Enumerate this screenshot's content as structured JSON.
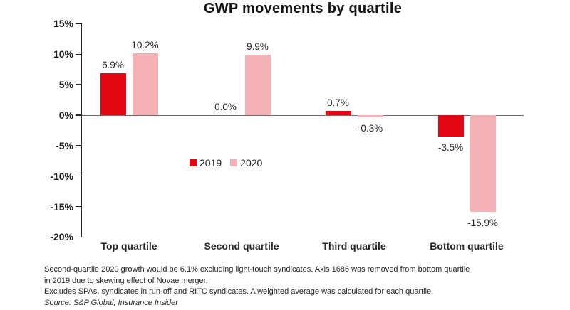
{
  "chart_data": {
    "type": "bar",
    "title": "GWP movements by quartile",
    "categories": [
      "Top quartile",
      "Second quartile",
      "Third quartile",
      "Bottom quartile"
    ],
    "series": [
      {
        "name": "2019",
        "color": "#e30613",
        "values": [
          6.9,
          0.0,
          0.7,
          -3.5
        ],
        "labels": [
          "6.9%",
          "0.0%",
          "0.7%",
          "-3.5%"
        ]
      },
      {
        "name": "2020",
        "color": "#f4b1b6",
        "values": [
          10.2,
          9.9,
          -0.3,
          -15.9
        ],
        "labels": [
          "10.2%",
          "9.9%",
          "-0.3%",
          "-15.9%"
        ]
      }
    ],
    "y_axis": {
      "ticks": [
        15,
        10,
        5,
        0,
        -5,
        -10,
        -15,
        -20
      ],
      "tick_labels": [
        "15%",
        "10%",
        "5%",
        "0%",
        "-5%",
        "-10%",
        "-15%",
        "-20%"
      ],
      "ylim": [
        -20,
        15
      ],
      "unit": "%"
    },
    "xlabel": "",
    "ylabel": "",
    "grid": false,
    "legend_position": "inside-plot-left-of-center"
  },
  "footnotes": {
    "lines": [
      "Second-quartile 2020 growth would be 6.1% excluding light-touch syndicates. Axis 1686 was removed from bottom quartile",
      "in 2019 due to skewing effect of Novae merger.",
      "Excludes SPAs, syndicates in run-off and RITC syndicates. A weighted average was calculated for each quartile."
    ],
    "source": "Source: S&P Global, Insurance Insider"
  }
}
